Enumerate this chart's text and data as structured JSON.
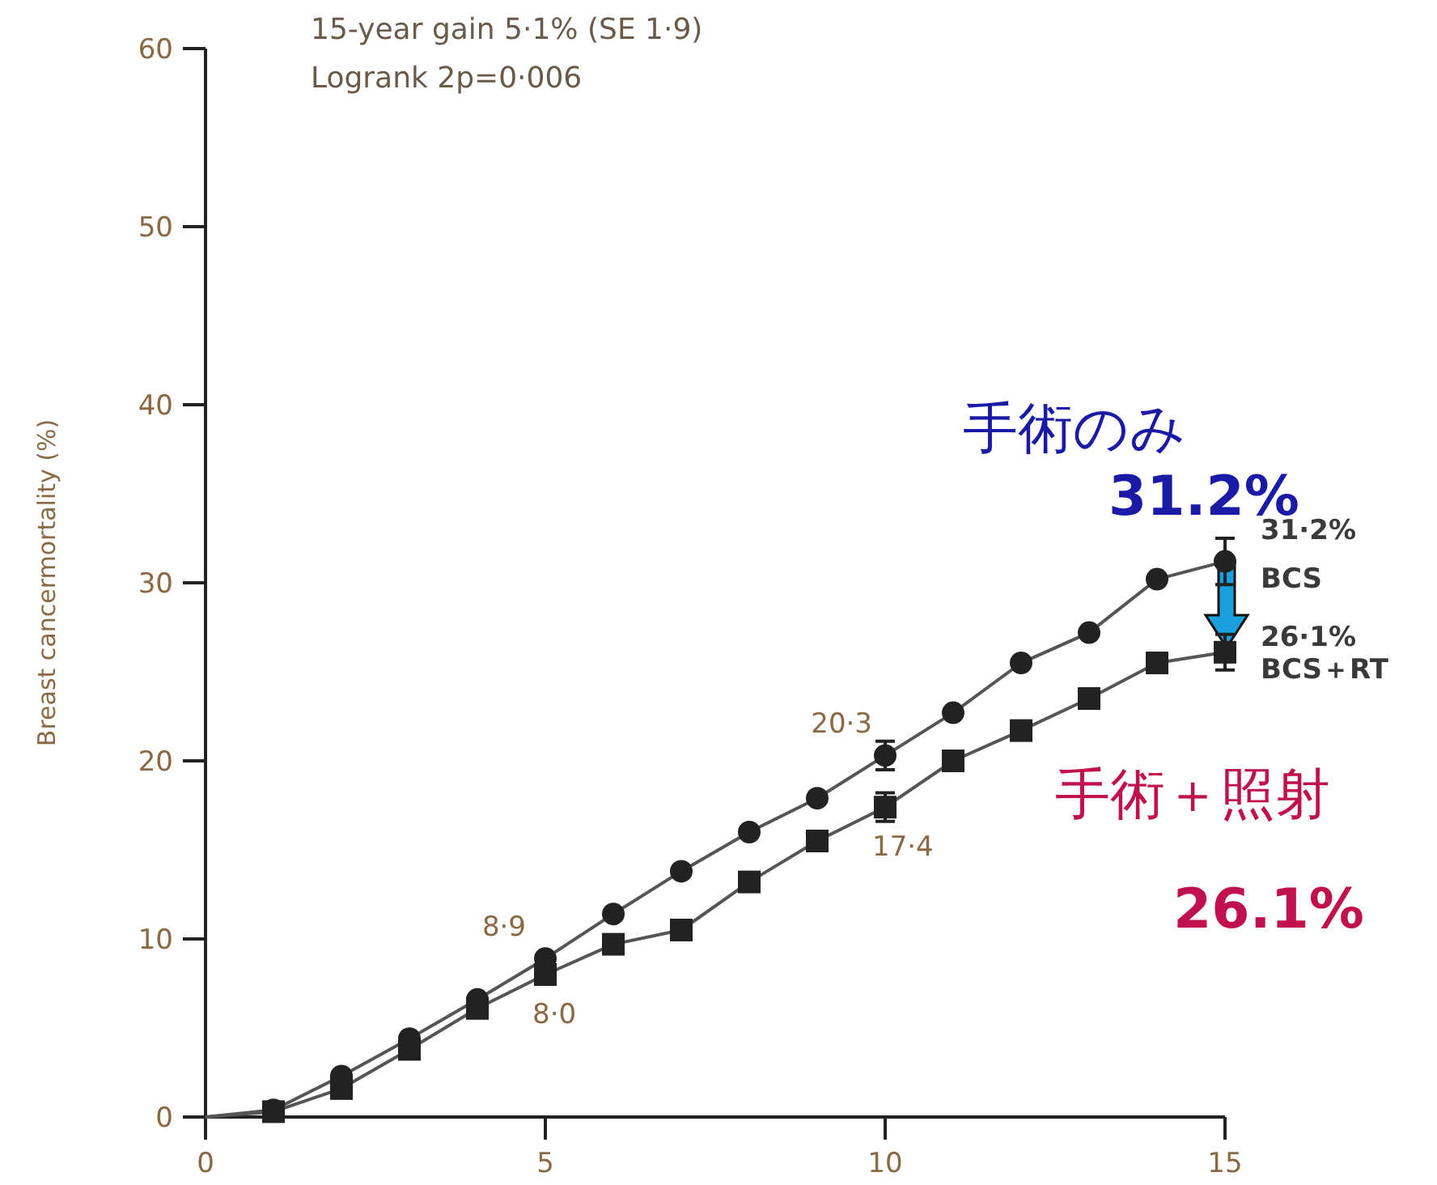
{
  "chart_data": {
    "type": "line",
    "ylabel": "Breast cancermortality (%)",
    "x": [
      0,
      1,
      2,
      3,
      4,
      5,
      6,
      7,
      8,
      9,
      10,
      11,
      12,
      13,
      14,
      15
    ],
    "xlim": [
      0,
      15
    ],
    "xticks": [
      0,
      5,
      10,
      15
    ],
    "ylim": [
      0,
      60
    ],
    "yticks": [
      0,
      10,
      20,
      30,
      40,
      50,
      60
    ],
    "line_style": "solid",
    "series": [
      {
        "name": "BCS",
        "color": "#222222",
        "marker": "circle",
        "values": [
          0,
          0.4,
          2.3,
          4.4,
          6.6,
          8.9,
          11.4,
          13.8,
          16.0,
          17.9,
          20.3,
          22.7,
          25.5,
          27.2,
          30.2,
          31.2
        ],
        "errors": [
          null,
          null,
          null,
          null,
          null,
          null,
          null,
          null,
          null,
          null,
          0.8,
          null,
          null,
          null,
          null,
          1.3
        ]
      },
      {
        "name": "BCS＋RT",
        "color": "#222222",
        "marker": "square",
        "values": [
          0,
          0.3,
          1.6,
          3.8,
          6.1,
          8.0,
          9.7,
          10.5,
          13.2,
          15.5,
          17.4,
          20.0,
          21.7,
          23.5,
          25.5,
          26.1
        ],
        "errors": [
          null,
          null,
          null,
          null,
          null,
          null,
          null,
          null,
          null,
          null,
          0.8,
          null,
          null,
          null,
          null,
          1.0
        ]
      }
    ],
    "annotations": [
      "15-year gain 5·1% (SE 1·9)",
      "Logrank 2p=0·006",
      {
        "text": "8·9",
        "x": 5,
        "y": 8.9
      },
      {
        "text": "8·0",
        "x": 5,
        "y": 8.0
      },
      {
        "text": "20·3",
        "x": 10,
        "y": 20.3
      },
      {
        "text": "17·4",
        "x": 10,
        "y": 17.4
      },
      {
        "text": "31·2%",
        "x": 15,
        "y": 31.2
      },
      {
        "text": "26·1%",
        "x": 15,
        "y": 26.1
      },
      "手術のみ",
      "31.2%",
      "手術＋照射",
      "26.1%"
    ]
  }
}
